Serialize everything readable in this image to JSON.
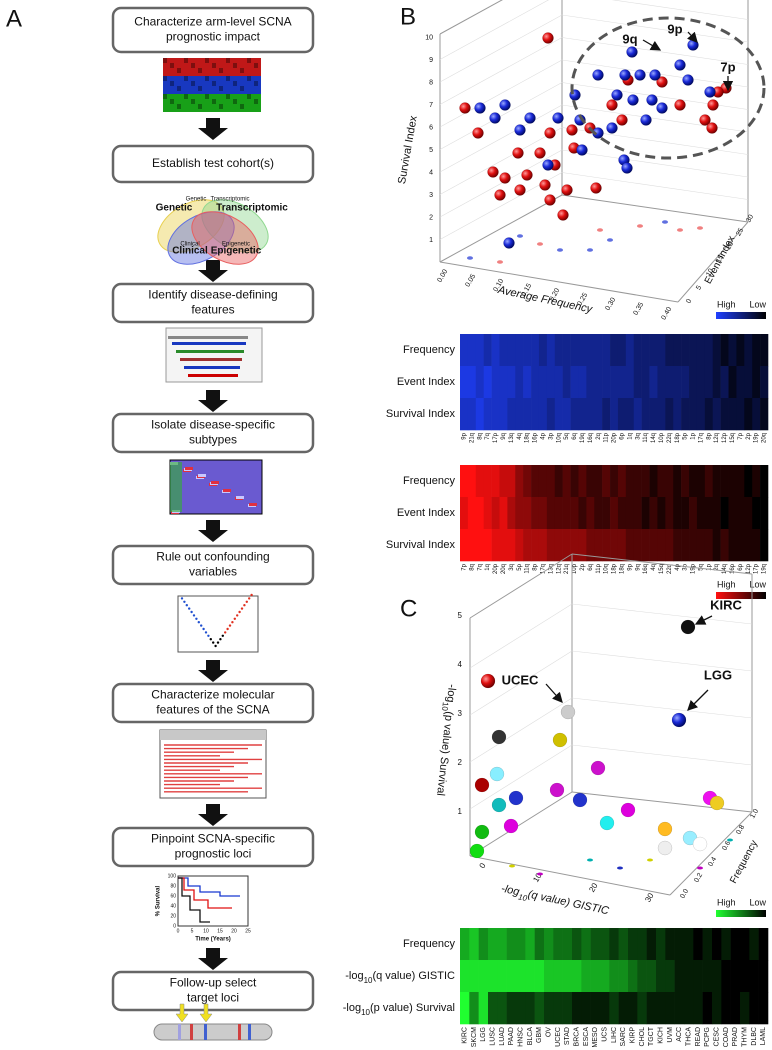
{
  "panels": {
    "A": {
      "label": "A",
      "steps": [
        [
          "Characterize arm-level SCNA",
          "prognostic impact"
        ],
        [
          "Establish test cohort(s)"
        ],
        [
          "Identify disease-defining",
          "features"
        ],
        [
          "Isolate disease-specific",
          "subtypes"
        ],
        [
          "Rule out confounding",
          "variables"
        ],
        [
          "Characterize molecular",
          "features of the SCNA"
        ],
        [
          "Pinpoint SCNA-specific",
          "prognostic loci"
        ],
        [
          "Follow-up select",
          "target loci"
        ]
      ],
      "venn": {
        "labels": [
          "Genetic",
          "Transcriptomic",
          "Clinical",
          "Epigenetic"
        ],
        "small_labels": [
          "Genetic",
          "Transcriptomic",
          "Clinical",
          "Epigenetic"
        ]
      },
      "km": {
        "y_label": "% Survival",
        "x_label": "Time (Years)",
        "yticks": [
          0,
          20,
          40,
          60,
          80,
          100
        ],
        "xticks": [
          0,
          5,
          10,
          15,
          20,
          25
        ]
      }
    },
    "B": {
      "label": "B",
      "scatter": {
        "z_label": "Survival Index",
        "x_label": "Average Frequency",
        "y_label": "Event Index",
        "annotations": [
          "9q",
          "9p",
          "7p"
        ],
        "zticks": [
          1,
          2,
          3,
          4,
          5,
          6,
          7,
          8,
          9,
          10
        ],
        "xticks": [
          "0.00",
          "0.05",
          "0.10",
          "0.15",
          "0.20",
          "0.25",
          "0.30",
          "0.35",
          "0.40"
        ],
        "yticks": [
          0,
          5,
          10,
          15,
          20,
          25,
          30
        ]
      },
      "legend_blue": [
        "High",
        "Low"
      ],
      "heatmap_blue": {
        "color": "#2040ff",
        "rows": [
          "Frequency",
          "Event Index",
          "Survival Index"
        ],
        "columns": [
          "9p",
          "21q",
          "8q",
          "7q",
          "17p",
          "9q",
          "13q",
          "4q",
          "18q",
          "16p",
          "4p",
          "3p",
          "10q",
          "5q",
          "6q",
          "19q",
          "16q",
          "2q",
          "11p",
          "20p",
          "6p",
          "1q",
          "3q",
          "11q",
          "14q",
          "10p",
          "22q",
          "18p",
          "5p",
          "1p",
          "17q",
          "8p",
          "12q",
          "12p",
          "15q",
          "7p",
          "2p",
          "19p",
          "20q"
        ],
        "values": [
          [
            7,
            7,
            7,
            6,
            7,
            6,
            6,
            6,
            6,
            6,
            5,
            6,
            5,
            5,
            5,
            5,
            5,
            5,
            5,
            4,
            4,
            5,
            4,
            4,
            4,
            4,
            3,
            3,
            3,
            3,
            3,
            3,
            2,
            1,
            2,
            1,
            2,
            1,
            1
          ],
          [
            8,
            8,
            7,
            8,
            7,
            7,
            7,
            6,
            7,
            6,
            6,
            6,
            6,
            5,
            6,
            6,
            5,
            5,
            5,
            5,
            5,
            5,
            4,
            4,
            5,
            4,
            4,
            4,
            4,
            3,
            3,
            3,
            2,
            3,
            1,
            2,
            2,
            1,
            2
          ],
          [
            7,
            7,
            8,
            7,
            7,
            7,
            6,
            6,
            6,
            6,
            6,
            5,
            6,
            6,
            5,
            5,
            5,
            5,
            4,
            5,
            4,
            4,
            5,
            4,
            4,
            4,
            3,
            4,
            3,
            3,
            3,
            2,
            3,
            2,
            2,
            2,
            1,
            2,
            1
          ]
        ]
      },
      "legend_red": [
        "High",
        "Low"
      ],
      "heatmap_red": {
        "color": "#ff1010",
        "rows": [
          "Frequency",
          "Event Index",
          "Survival Index"
        ],
        "columns": [
          "7p",
          "8q",
          "7q",
          "1q",
          "20p",
          "20q",
          "3q",
          "5p",
          "11q",
          "8p",
          "17q",
          "13q",
          "12q",
          "21q",
          "10p",
          "2p",
          "6q",
          "11p",
          "10q",
          "18p",
          "18q",
          "9p",
          "9q",
          "16q",
          "4q",
          "15q",
          "22q",
          "4p",
          "3p",
          "19p",
          "5q",
          "1p",
          "2q",
          "14q",
          "16p",
          "6p",
          "12p",
          "17p",
          "19q"
        ],
        "values": [
          [
            9,
            9,
            8,
            8,
            8,
            7,
            7,
            5,
            4,
            3,
            3,
            3,
            2,
            3,
            2,
            3,
            2,
            2,
            3,
            2,
            3,
            2,
            2,
            2,
            1,
            2,
            2,
            1,
            2,
            1,
            1,
            2,
            1,
            1,
            1,
            1,
            0,
            1,
            0
          ],
          [
            8,
            9,
            9,
            8,
            7,
            8,
            6,
            5,
            5,
            4,
            4,
            3,
            3,
            3,
            3,
            2,
            3,
            2,
            2,
            3,
            2,
            2,
            2,
            1,
            2,
            1,
            2,
            1,
            1,
            2,
            1,
            1,
            1,
            0,
            1,
            1,
            1,
            0,
            0
          ],
          [
            9,
            9,
            9,
            9,
            8,
            8,
            8,
            7,
            6,
            6,
            6,
            5,
            5,
            5,
            5,
            5,
            4,
            4,
            4,
            4,
            4,
            3,
            3,
            3,
            3,
            3,
            3,
            2,
            2,
            2,
            2,
            2,
            1,
            2,
            1,
            1,
            1,
            1,
            0
          ]
        ]
      }
    },
    "C": {
      "label": "C",
      "scatter": {
        "z_label": {
          "prefix": "-log",
          "sub": "10",
          "suffix": "(p value) Survival"
        },
        "x_label": {
          "prefix": "-log",
          "sub": "10",
          "suffix": "(q value) GISTIC"
        },
        "y_label": "Frequency",
        "annotations": [
          "KIRC",
          "UCEC",
          "LGG"
        ],
        "zticks": [
          1,
          2,
          3,
          4,
          5
        ],
        "xticks": [
          0,
          10,
          20,
          30
        ],
        "yticks": [
          "0.0",
          "0.2",
          "0.4",
          "0.6",
          "0.8",
          "1.0"
        ]
      },
      "legend_green": [
        "High",
        "Low"
      ],
      "heatmap_green": {
        "color": "#20ff30",
        "rows": [
          {
            "prefix": "Frequency"
          },
          {
            "prefix": "-log",
            "sub": "10",
            "suffix": "(q value) GISTIC"
          },
          {
            "prefix": "-log",
            "sub": "10",
            "suffix": "(p value) Survival"
          }
        ],
        "columns": [
          "KIRC",
          "SKCM",
          "LGG",
          "LUSC",
          "LUAD",
          "PAAD",
          "HNSC",
          "BLCA",
          "GBM",
          "OV",
          "UCEC",
          "STAD",
          "BRCA",
          "ESCA",
          "MESO",
          "UCS",
          "LIHC",
          "SARC",
          "KIRP",
          "CHOL",
          "TGCT",
          "KICH",
          "UVM",
          "ACC",
          "THCA",
          "READ",
          "PCPG",
          "CESC",
          "COAD",
          "PRAD",
          "THYM",
          "DLBC",
          "LAML"
        ],
        "values": [
          [
            6,
            7,
            5,
            6,
            6,
            5,
            5,
            6,
            4,
            5,
            4,
            4,
            3,
            4,
            3,
            3,
            2,
            3,
            2,
            2,
            1,
            2,
            1,
            1,
            1,
            0,
            1,
            0,
            1,
            0,
            0,
            1,
            0
          ],
          [
            8,
            8,
            8,
            8,
            8,
            8,
            8,
            8,
            8,
            7,
            7,
            7,
            7,
            6,
            6,
            6,
            5,
            5,
            4,
            3,
            3,
            2,
            2,
            1,
            1,
            1,
            1,
            1,
            0,
            0,
            0,
            0,
            0
          ],
          [
            9,
            5,
            8,
            3,
            3,
            2,
            2,
            2,
            3,
            2,
            2,
            2,
            1,
            1,
            1,
            1,
            2,
            1,
            1,
            2,
            1,
            1,
            1,
            1,
            1,
            1,
            0,
            1,
            0,
            0,
            1,
            0,
            0
          ]
        ]
      }
    }
  }
}
